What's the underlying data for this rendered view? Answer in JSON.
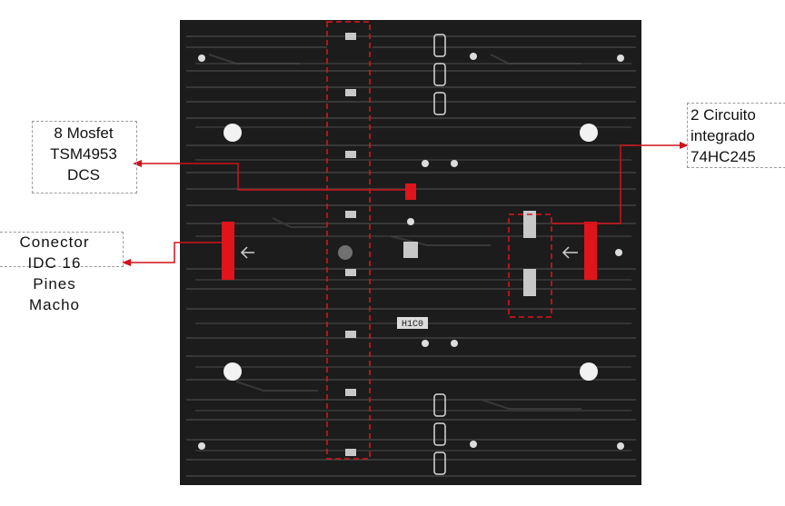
{
  "annotations": {
    "mosfet": [
      "8 Mosfet",
      "TSM4953",
      "DCS"
    ],
    "connector": [
      "Conector",
      "IDC 16",
      "Pines",
      "Macho"
    ],
    "ic": [
      "2 Circuito",
      "integrado",
      "74HC245"
    ]
  },
  "board": {
    "chip_marking": "H1C0"
  },
  "colors": {
    "board": "#1c1c1c",
    "trace": "#3a3a3a",
    "highlight": "#e0141b",
    "leader": "#d0121a"
  }
}
